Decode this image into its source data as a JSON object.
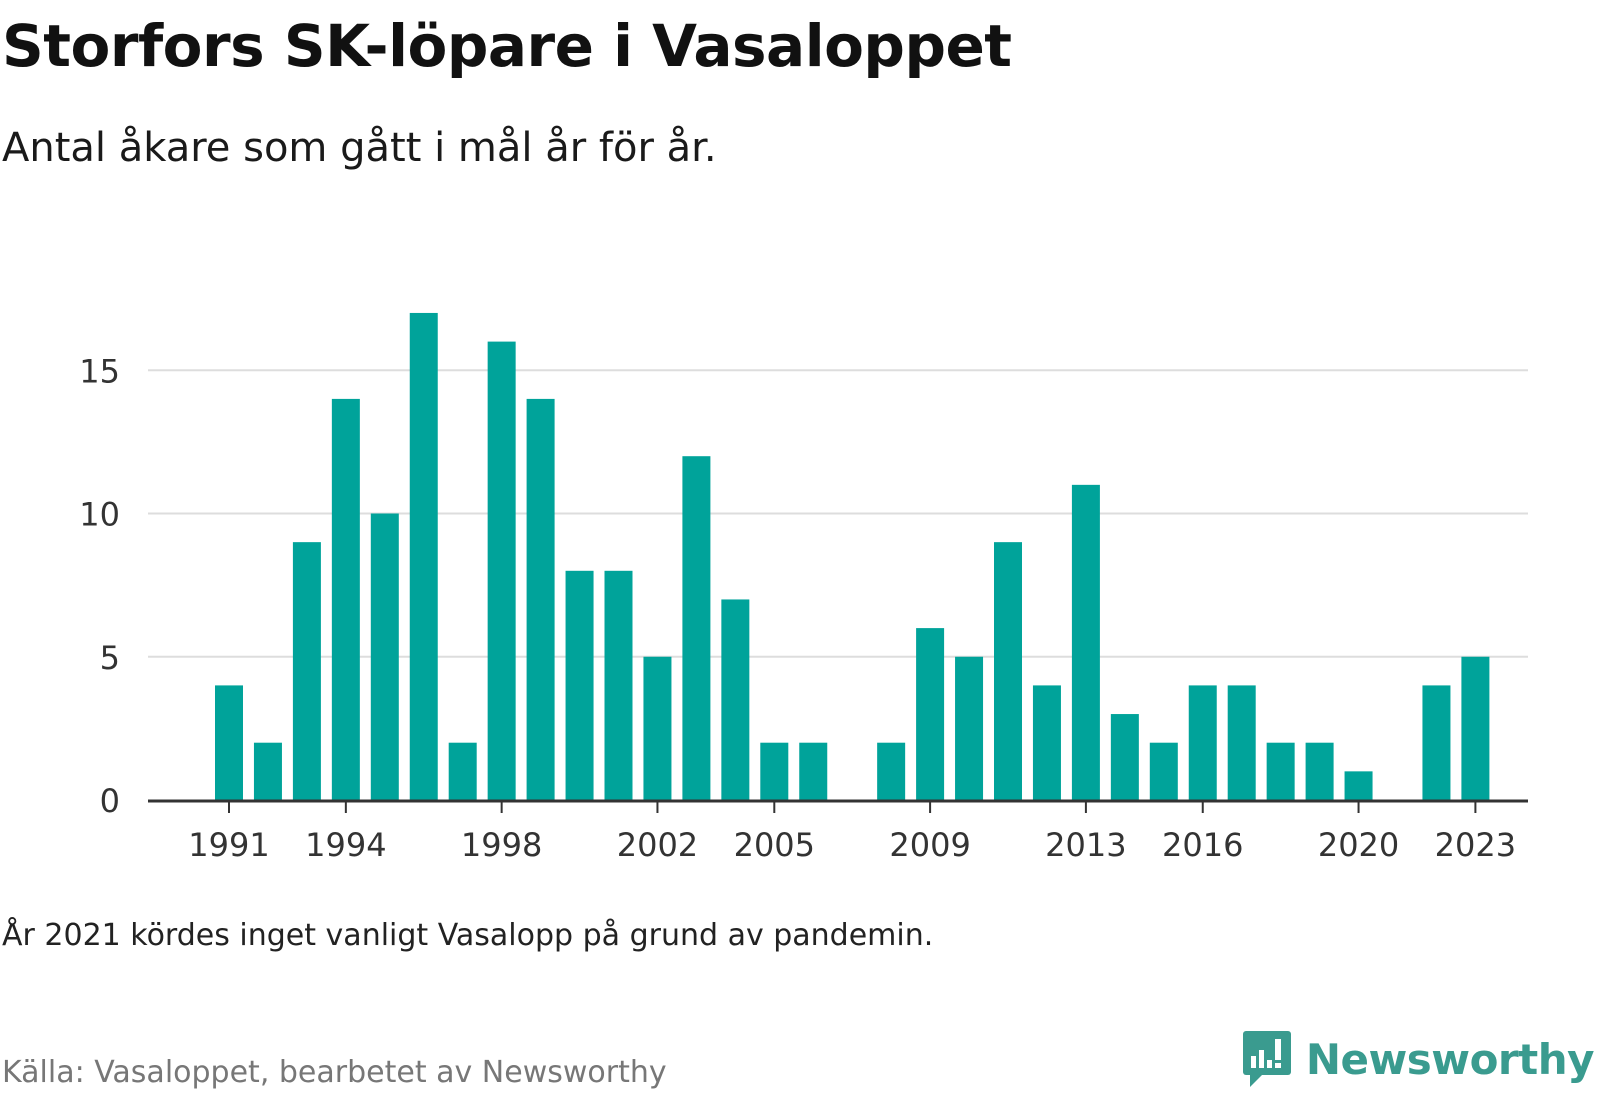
{
  "title": "Storfors SK-löpare i Vasaloppet",
  "subtitle": "Antal åkare som gått i mål år för år.",
  "note": "År 2021 kördes inget vanligt Vasalopp på grund av pandemin.",
  "source": "Källa: Vasaloppet, bearbetet av Newsworthy",
  "brand": {
    "name": "Newsworthy",
    "icon": "newsworthy-logo-icon",
    "color": "#3a9b8f"
  },
  "chart_data": {
    "type": "bar",
    "categories": [
      "1991",
      "1992",
      "1993",
      "1994",
      "1995",
      "1996",
      "1997",
      "1998",
      "1999",
      "2000",
      "2001",
      "2002",
      "2003",
      "2004",
      "2005",
      "2006",
      "2007",
      "2008",
      "2009",
      "2010",
      "2011",
      "2012",
      "2013",
      "2014",
      "2015",
      "2016",
      "2017",
      "2018",
      "2019",
      "2020",
      "2021",
      "2022",
      "2023"
    ],
    "values": [
      4,
      2,
      9,
      14,
      10,
      17,
      2,
      16,
      14,
      8,
      8,
      5,
      12,
      7,
      2,
      2,
      0,
      2,
      6,
      5,
      9,
      4,
      11,
      3,
      2,
      4,
      4,
      2,
      2,
      1,
      0,
      4,
      5
    ],
    "x_tick_labels": [
      "1991",
      "1994",
      "1998",
      "2002",
      "2005",
      "2009",
      "2013",
      "2016",
      "2020",
      "2023"
    ],
    "y_ticks": [
      0,
      5,
      10,
      15
    ],
    "ylim": [
      0,
      17
    ],
    "xlabel": "",
    "ylabel": "",
    "grid": true,
    "bar_color": "#00a39a",
    "grid_color": "#dddddd",
    "axis_color": "#333333"
  }
}
